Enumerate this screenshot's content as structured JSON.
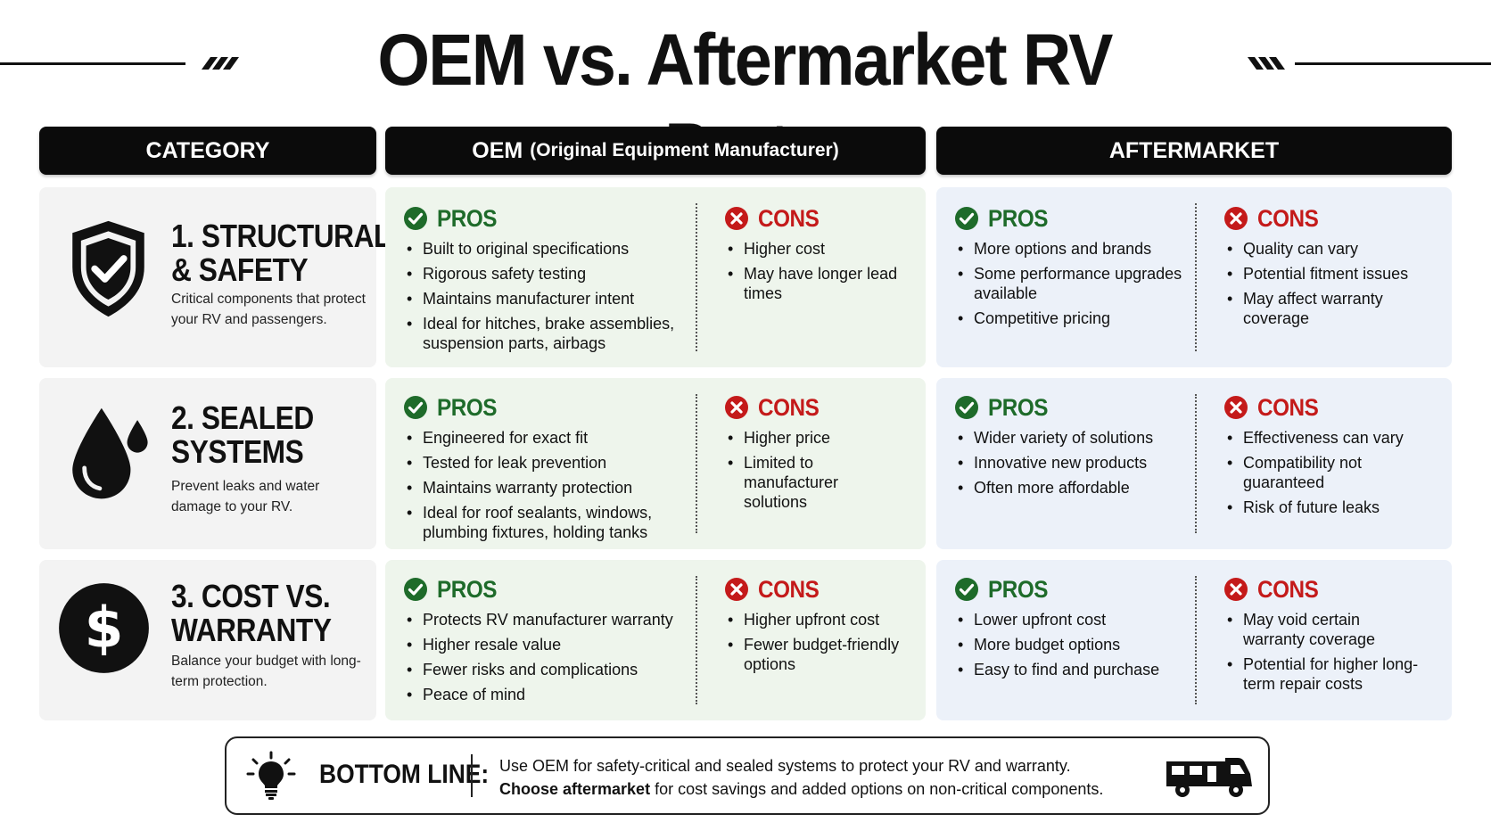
{
  "title": "OEM vs. Aftermarket RV Parts",
  "headers": {
    "category": "CATEGORY",
    "oem_main": "OEM",
    "oem_sub": "(Original Equipment Manufacturer)",
    "aftermarket": "AFTERMARKET"
  },
  "labels": {
    "pros": "PROS",
    "cons": "CONS"
  },
  "rows": [
    {
      "icon": "shield-check-icon",
      "title_line1": "1. STRUCTURAL",
      "title_line2": "& SAFETY",
      "description": "Critical components that protect your RV and passengers.",
      "oem_pros": [
        "Built to original specifications",
        "Rigorous safety testing",
        "Maintains manufacturer intent",
        "Ideal for hitches, brake assemblies, suspension parts, airbags"
      ],
      "oem_cons": [
        "Higher cost",
        "May have longer lead times"
      ],
      "aft_pros": [
        "More options and brands",
        "Some performance upgrades available",
        "Competitive pricing"
      ],
      "aft_cons": [
        "Quality can vary",
        "Potential fitment issues",
        "May affect warranty coverage"
      ]
    },
    {
      "icon": "water-drop-icon",
      "title_line1": "2. SEALED",
      "title_line2": "SYSTEMS",
      "description": "Prevent leaks and water damage to your RV.",
      "oem_pros": [
        "Engineered for exact fit",
        "Tested for leak prevention",
        "Maintains warranty protection",
        "Ideal for roof sealants, windows, plumbing fixtures, holding tanks"
      ],
      "oem_cons": [
        "Higher price",
        "Limited to manufacturer solutions"
      ],
      "aft_pros": [
        "Wider variety of solutions",
        "Innovative new products",
        "Often more affordable"
      ],
      "aft_cons": [
        "Effectiveness can vary",
        "Compatibility not guaranteed",
        "Risk of future leaks"
      ]
    },
    {
      "icon": "dollar-icon",
      "title_line1": "3. COST VS.",
      "title_line2": "WARRANTY",
      "description": "Balance your budget with long-term protection.",
      "oem_pros": [
        "Protects RV manufacturer warranty",
        "Higher resale value",
        "Fewer risks and complications",
        "Peace of mind"
      ],
      "oem_cons": [
        "Higher upfront cost",
        "Fewer budget-friendly options"
      ],
      "aft_pros": [
        "Lower upfront cost",
        "More budget options",
        "Easy to find and purchase"
      ],
      "aft_cons": [
        "May void certain warranty coverage",
        "Potential for higher long-term repair costs"
      ]
    }
  ],
  "bottom_line": {
    "label": "BOTTOM LINE:",
    "line1": "Use OEM for safety-critical and sealed systems to protect your RV and warranty.",
    "line2_bold": "Choose aftermarket",
    "line2_rest": " for cost savings and added options on non-critical components."
  },
  "colors": {
    "pros": "#1e6b2a",
    "cons": "#c41a1a",
    "oem_bg": "#eef5ec",
    "aft_bg": "#ecf1f9",
    "cat_bg": "#f3f3f3"
  }
}
